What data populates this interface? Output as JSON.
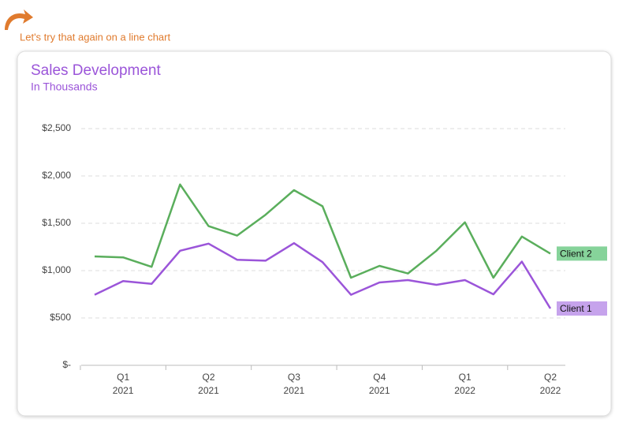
{
  "annotation": "Let's try that again on a line chart",
  "chart_data": {
    "type": "line",
    "title": "Sales Development",
    "subtitle": "In Thousands",
    "categories": [
      null,
      "Q1\n2021",
      null,
      null,
      "Q2\n2021",
      null,
      null,
      "Q3\n2021",
      null,
      null,
      "Q4\n2021",
      null,
      null,
      "Q1\n2022",
      null,
      null,
      "Q2\n2022"
    ],
    "series": [
      {
        "name": "Client 2",
        "color": "#5aae5c",
        "label_bg": "#86d39a",
        "values": [
          1150,
          1140,
          1040,
          1910,
          1470,
          1370,
          1590,
          1850,
          1680,
          925,
          1050,
          970,
          1210,
          1510,
          925,
          1360,
          1180
        ]
      },
      {
        "name": "Client 1",
        "color": "#9b55d9",
        "label_bg": "#c6a3ec",
        "values": [
          745,
          890,
          860,
          1210,
          1285,
          1115,
          1105,
          1290,
          1090,
          745,
          875,
          900,
          850,
          900,
          750,
          1095,
          600
        ]
      }
    ],
    "ylim": [
      0,
      2500
    ],
    "yticks": [
      {
        "value": 0,
        "label": "$-"
      },
      {
        "value": 500,
        "label": "$500"
      },
      {
        "value": 1000,
        "label": "$1,000"
      },
      {
        "value": 1500,
        "label": "$1,500"
      },
      {
        "value": 2000,
        "label": "$2,000"
      },
      {
        "value": 2500,
        "label": "$2,500"
      }
    ],
    "grid": true
  }
}
